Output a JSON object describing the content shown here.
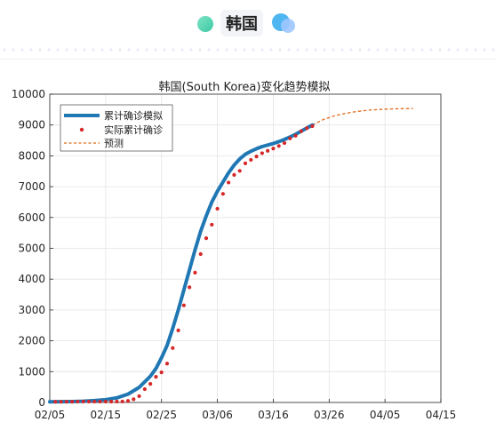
{
  "header": {
    "title": "韩国",
    "left_decoration_icon": "green-blob-icon",
    "right_decoration_icon": "blue-bubbles-icon"
  },
  "colors": {
    "model_line": "#1f77b4",
    "actual_points": "#d62728",
    "forecast_line": "#e06a1b",
    "accent_green": "#3dc9a5",
    "accent_blue": "#4fb6f2"
  },
  "chart_data": {
    "type": "line",
    "title": "韩国(South Korea)变化趋势模拟",
    "xlabel": "",
    "ylabel": "",
    "x_ticks": [
      "02/05",
      "02/15",
      "02/25",
      "03/06",
      "03/16",
      "03/26",
      "04/05",
      "04/15"
    ],
    "xlim": [
      "02/05",
      "04/15"
    ],
    "ylim": [
      0,
      10000
    ],
    "y_ticks": [
      0,
      1000,
      2000,
      3000,
      4000,
      5000,
      6000,
      7000,
      8000,
      9000,
      10000
    ],
    "grid": true,
    "legend_position": "top-left",
    "series": [
      {
        "name": "累计确诊模拟",
        "style": "solid-thick",
        "x": [
          "02/05",
          "02/07",
          "02/09",
          "02/11",
          "02/13",
          "02/15",
          "02/17",
          "02/19",
          "02/21",
          "02/23",
          "02/24",
          "02/25",
          "02/26",
          "02/27",
          "02/28",
          "02/29",
          "03/01",
          "03/02",
          "03/03",
          "03/04",
          "03/05",
          "03/06",
          "03/07",
          "03/08",
          "03/09",
          "03/10",
          "03/11",
          "03/12",
          "03/13",
          "03/14",
          "03/15",
          "03/16",
          "03/17",
          "03/18",
          "03/19",
          "03/20",
          "03/21",
          "03/22",
          "03/23"
        ],
        "values": [
          20,
          25,
          30,
          40,
          60,
          90,
          150,
          270,
          490,
          850,
          1100,
          1450,
          1850,
          2400,
          3000,
          3650,
          4300,
          4950,
          5550,
          6050,
          6500,
          6850,
          7150,
          7450,
          7700,
          7900,
          8050,
          8150,
          8230,
          8300,
          8350,
          8400,
          8460,
          8530,
          8610,
          8700,
          8800,
          8900,
          9000
        ]
      },
      {
        "name": "实际累计确诊",
        "style": "points",
        "x": [
          "02/06",
          "02/07",
          "02/08",
          "02/09",
          "02/10",
          "02/11",
          "02/12",
          "02/13",
          "02/14",
          "02/15",
          "02/16",
          "02/17",
          "02/18",
          "02/19",
          "02/20",
          "02/21",
          "02/22",
          "02/23",
          "02/24",
          "02/25",
          "02/26",
          "02/27",
          "02/28",
          "02/29",
          "03/01",
          "03/02",
          "03/03",
          "03/04",
          "03/05",
          "03/06",
          "03/07",
          "03/08",
          "03/09",
          "03/10",
          "03/11",
          "03/12",
          "03/13",
          "03/14",
          "03/15",
          "03/16",
          "03/17",
          "03/18",
          "03/19",
          "03/20",
          "03/21",
          "03/22",
          "03/23"
        ],
        "values": [
          23,
          24,
          24,
          25,
          27,
          28,
          28,
          28,
          28,
          28,
          29,
          30,
          31,
          51,
          104,
          204,
          433,
          602,
          833,
          977,
          1261,
          1766,
          2337,
          3150,
          3736,
          4212,
          4812,
          5328,
          5766,
          6284,
          6767,
          7134,
          7382,
          7513,
          7755,
          7869,
          7979,
          8086,
          8162,
          8236,
          8320,
          8413,
          8565,
          8652,
          8799,
          8897,
          8961
        ]
      },
      {
        "name": "预测",
        "style": "dashed",
        "x": [
          "03/23",
          "03/25",
          "03/27",
          "03/29",
          "03/31",
          "04/02",
          "04/04",
          "04/06",
          "04/08",
          "04/10"
        ],
        "values": [
          9000,
          9180,
          9300,
          9380,
          9440,
          9480,
          9505,
          9520,
          9530,
          9535
        ]
      }
    ]
  }
}
